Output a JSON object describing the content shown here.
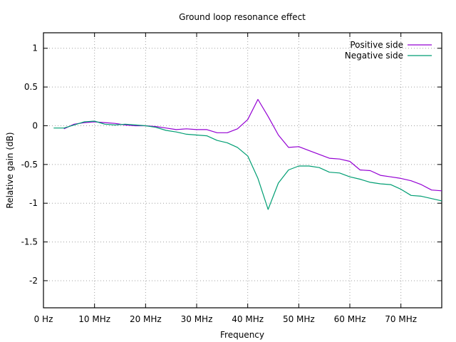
{
  "chart_data": {
    "type": "line",
    "title": "Ground loop resonance effect",
    "xlabel": "Frequency",
    "ylabel": "Relative gain (dB)",
    "xlim": [
      0,
      78
    ],
    "ylim": [
      -2.35,
      1.2
    ],
    "grid": true,
    "legend_position": "top-right",
    "x_ticks": [
      {
        "value": 0,
        "label": "0  Hz"
      },
      {
        "value": 10,
        "label": "10 MHz"
      },
      {
        "value": 20,
        "label": "20 MHz"
      },
      {
        "value": 30,
        "label": "30 MHz"
      },
      {
        "value": 40,
        "label": "40 MHz"
      },
      {
        "value": 50,
        "label": "50 MHz"
      },
      {
        "value": 60,
        "label": "60 MHz"
      },
      {
        "value": 70,
        "label": "70 MHz"
      }
    ],
    "y_ticks": [
      {
        "value": 1,
        "label": "1"
      },
      {
        "value": 0.5,
        "label": "0.5"
      },
      {
        "value": 0,
        "label": "0"
      },
      {
        "value": -0.5,
        "label": "-0.5"
      },
      {
        "value": -1,
        "label": "-1"
      },
      {
        "value": -1.5,
        "label": "-1.5"
      },
      {
        "value": -2,
        "label": "-2"
      }
    ],
    "series": [
      {
        "name": "Positive side",
        "color": "#9400d3",
        "x": [
          4,
          6,
          8,
          10,
          12,
          14,
          16,
          18,
          20,
          22,
          24,
          26,
          28,
          30,
          32,
          34,
          36,
          38,
          40,
          42,
          44,
          46,
          48,
          50,
          52,
          54,
          56,
          58,
          60,
          62,
          64,
          66,
          68,
          70,
          72,
          74,
          76,
          78
        ],
        "y": [
          -0.04,
          0.02,
          0.04,
          0.05,
          0.04,
          0.03,
          0.01,
          0.0,
          0.0,
          -0.01,
          -0.03,
          -0.05,
          -0.04,
          -0.05,
          -0.05,
          -0.09,
          -0.09,
          -0.04,
          0.08,
          0.34,
          0.12,
          -0.12,
          -0.28,
          -0.27,
          -0.32,
          -0.37,
          -0.42,
          -0.43,
          -0.46,
          -0.57,
          -0.58,
          -0.64,
          -0.66,
          -0.68,
          -0.71,
          -0.76,
          -0.83,
          -0.84
        ]
      },
      {
        "name": "Negative side",
        "color": "#009e73",
        "x": [
          2,
          4,
          6,
          8,
          10,
          12,
          14,
          16,
          18,
          20,
          22,
          24,
          26,
          28,
          30,
          32,
          34,
          36,
          38,
          40,
          42,
          44,
          46,
          48,
          50,
          52,
          54,
          56,
          58,
          60,
          62,
          64,
          66,
          68,
          70,
          72,
          74,
          76,
          78
        ],
        "y": [
          -0.03,
          -0.03,
          0.01,
          0.05,
          0.06,
          0.02,
          0.01,
          0.02,
          0.01,
          0.0,
          -0.02,
          -0.06,
          -0.08,
          -0.11,
          -0.12,
          -0.13,
          -0.19,
          -0.22,
          -0.28,
          -0.39,
          -0.68,
          -1.08,
          -0.74,
          -0.57,
          -0.52,
          -0.52,
          -0.54,
          -0.6,
          -0.61,
          -0.66,
          -0.69,
          -0.73,
          -0.75,
          -0.76,
          -0.82,
          -0.9,
          -0.91,
          -0.94,
          -0.97
        ]
      }
    ]
  }
}
